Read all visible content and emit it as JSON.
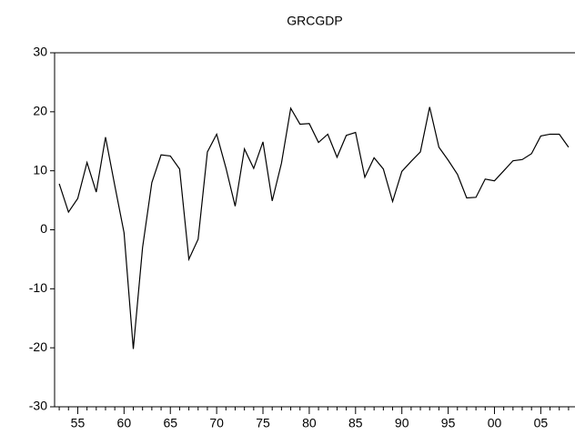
{
  "chart_data": {
    "type": "line",
    "title": "GRCGDP",
    "categories": [
      null,
      null,
      "55",
      null,
      null,
      null,
      null,
      "60",
      null,
      null,
      null,
      null,
      "65",
      null,
      null,
      null,
      null,
      "70",
      null,
      null,
      null,
      null,
      "75",
      null,
      null,
      null,
      null,
      "80",
      null,
      null,
      null,
      null,
      "85",
      null,
      null,
      null,
      null,
      "90",
      null,
      null,
      null,
      null,
      "95",
      null,
      null,
      null,
      null,
      "00",
      null,
      null,
      null,
      null,
      "05",
      null,
      null,
      null
    ],
    "values": [
      7.8,
      3.0,
      5.3,
      11.4,
      6.4,
      15.7,
      7.5,
      -0.5,
      -20.2,
      -3.0,
      8.0,
      12.7,
      12.5,
      10.3,
      -5.0,
      -1.6,
      13.2,
      16.2,
      10.5,
      4.0,
      13.7,
      10.4,
      14.9,
      4.9,
      11.3,
      20.6,
      17.9,
      18.0,
      14.8,
      16.2,
      12.3,
      16.0,
      16.5,
      8.9,
      12.2,
      10.3,
      4.8,
      9.9,
      11.6,
      13.2,
      20.8,
      14.0,
      11.8,
      9.4,
      5.4,
      5.5,
      8.6,
      8.3,
      10.0,
      11.7,
      11.9,
      12.9,
      15.9,
      16.2,
      16.2,
      14.0
    ],
    "color": "#000000",
    "ylim": [
      -30,
      30
    ],
    "yticks": [
      -30,
      -20,
      -10,
      0,
      10,
      20,
      30
    ],
    "grid": false
  }
}
